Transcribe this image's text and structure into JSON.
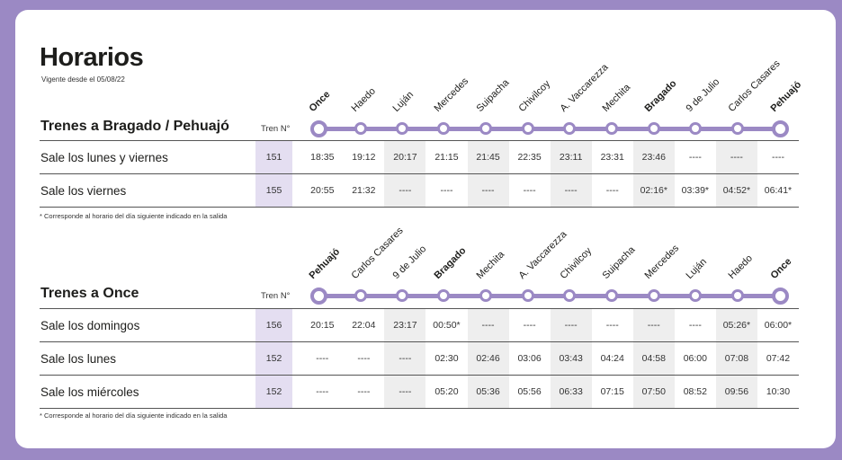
{
  "title": "Horarios",
  "subtitle": "Vigente desde el 05/08/22",
  "tren_label": "Tren N°",
  "sections": [
    {
      "route": "Trenes a Bragado / Pehuajó",
      "stations": [
        "Once",
        "Haedo",
        "Luján",
        "Mercedes",
        "Suipacha",
        "Chivilcoy",
        "A. Vaccarezza",
        "Mechita",
        "Bragado",
        "9 de Julio",
        "Carlos Casares",
        "Pehuajó"
      ],
      "bold_stations": [
        "Once",
        "Bragado",
        "Pehuajó"
      ],
      "rows": [
        {
          "label": "Sale los lunes y viernes",
          "tren": "151",
          "times": [
            "18:35",
            "19:12",
            "20:17",
            "21:15",
            "21:45",
            "22:35",
            "23:11",
            "23:31",
            "23:46",
            "----",
            "----",
            "----"
          ]
        },
        {
          "label": "Sale los viernes",
          "tren": "155",
          "times": [
            "20:55",
            "21:32",
            "----",
            "----",
            "----",
            "----",
            "----",
            "----",
            "02:16*",
            "03:39*",
            "04:52*",
            "06:41*"
          ]
        }
      ],
      "footnote": "* Corresponde al horario del día siguiente indicado en la salida"
    },
    {
      "route": "Trenes a Once",
      "stations": [
        "Pehuajó",
        "Carlos Casares",
        "9 de Julio",
        "Bragado",
        "Mechita",
        "A. Vaccarezza",
        "Chivilcoy",
        "Suipacha",
        "Mercedes",
        "Luján",
        "Haedo",
        "Once"
      ],
      "bold_stations": [
        "Pehuajó",
        "Bragado",
        "Once"
      ],
      "rows": [
        {
          "label": "Sale los domingos",
          "tren": "156",
          "times": [
            "20:15",
            "22:04",
            "23:17",
            "00:50*",
            "----",
            "----",
            "----",
            "----",
            "----",
            "----",
            "05:26*",
            "06:00*"
          ]
        },
        {
          "label": "Sale los lunes",
          "tren": "152",
          "times": [
            "----",
            "----",
            "----",
            "02:30",
            "02:46",
            "03:06",
            "03:43",
            "04:24",
            "04:58",
            "06:00",
            "07:08",
            "07:42"
          ]
        },
        {
          "label": "Sale los miércoles",
          "tren": "152",
          "times": [
            "----",
            "----",
            "----",
            "05:20",
            "05:36",
            "05:56",
            "06:33",
            "07:15",
            "07:50",
            "08:52",
            "09:56",
            "10:30"
          ]
        }
      ],
      "footnote": "* Corresponde al horario del día siguiente indicado en la salida"
    }
  ],
  "colors": {
    "accent": "#9b89c4",
    "train_cell": "#e4def1",
    "shade_cell": "#eeeeee"
  }
}
